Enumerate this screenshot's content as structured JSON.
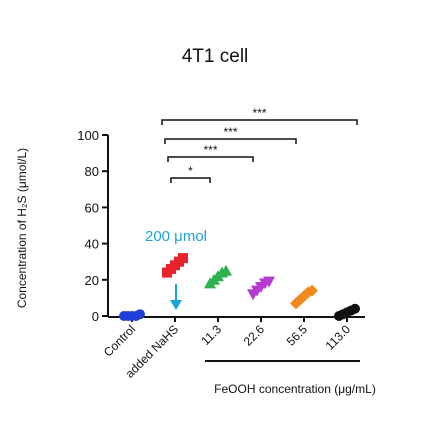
{
  "chart_data": {
    "type": "strip",
    "title": "4T1 cell",
    "y_label": "Concentration of H₂S (μmol/L)",
    "x_label": "FeOOH concentration (μg/mL)",
    "categories": [
      "Control",
      "added NaHS",
      "11.3",
      "22.6",
      "56.5",
      "113.0"
    ],
    "colors": [
      "#1f3fd6",
      "#e8212a",
      "#2eb24f",
      "#b43bd0",
      "#f08a1f",
      "#111111"
    ],
    "markers": [
      "circle",
      "square",
      "triangle-up",
      "triangle-down",
      "diamond",
      "circle"
    ],
    "values": [
      [
        0,
        0,
        0,
        0,
        1
      ],
      [
        24,
        26,
        28,
        30,
        32
      ],
      [
        18,
        20,
        22,
        24,
        25
      ],
      [
        12,
        14,
        16,
        18,
        19
      ],
      [
        7,
        9,
        11,
        13,
        14
      ],
      [
        0,
        1,
        2,
        3,
        4
      ]
    ],
    "ylim": [
      0,
      100
    ],
    "yticks": [
      0,
      20,
      40,
      60,
      80,
      100
    ],
    "annotation": "200 μmol",
    "comparisons": [
      {
        "from": 1,
        "to": 2,
        "label": "*"
      },
      {
        "from": 1,
        "to": 3,
        "label": "***"
      },
      {
        "from": 1,
        "to": 4,
        "label": "***"
      },
      {
        "from": 1,
        "to": 5,
        "label": "***"
      }
    ]
  }
}
